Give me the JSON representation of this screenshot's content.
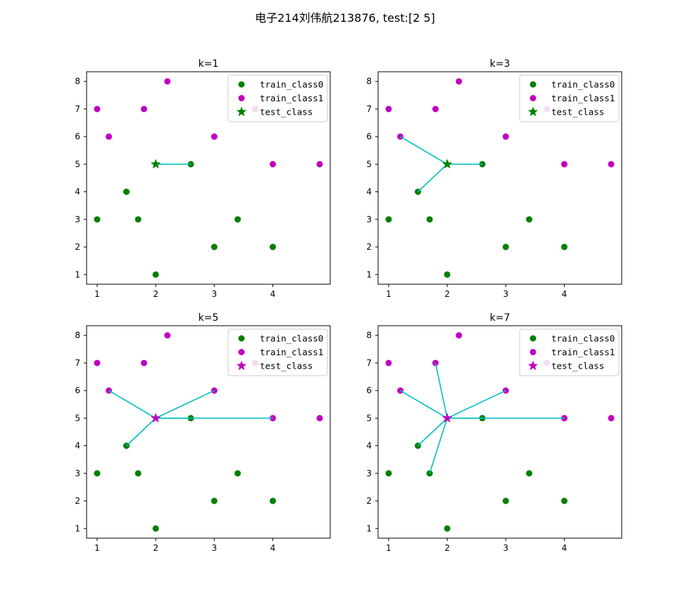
{
  "figure": {
    "suptitle": "电子214刘伟航213876, test:[2 5]"
  },
  "colors": {
    "class0": "#008000",
    "class1": "#bf00bf",
    "neighbor_line": "#00bfbf"
  },
  "chart_data": [
    {
      "type": "scatter",
      "title": "k=1",
      "k": 1,
      "xlim": [
        0.82,
        4.98
      ],
      "ylim": [
        0.65,
        8.35
      ],
      "xticks": [
        "1",
        "2",
        "3",
        "4"
      ],
      "yticks": [
        "1",
        "2",
        "3",
        "4",
        "5",
        "6",
        "7",
        "8"
      ],
      "legend": {
        "placement": "top-right",
        "entries": [
          "train_class0",
          "train_class1",
          "test_class"
        ]
      },
      "train_class0": [
        [
          1.5,
          4
        ],
        [
          1,
          3
        ],
        [
          1.7,
          3
        ],
        [
          3.4,
          3
        ],
        [
          3,
          2
        ],
        [
          4,
          2
        ],
        [
          2,
          1
        ],
        [
          2.6,
          5
        ]
      ],
      "train_class1": [
        [
          2.2,
          8
        ],
        [
          1,
          7
        ],
        [
          1.8,
          7
        ],
        [
          3.7,
          7
        ],
        [
          1.2,
          6
        ],
        [
          3,
          6
        ],
        [
          4,
          5
        ],
        [
          4.8,
          5
        ]
      ],
      "test_point": [
        2,
        5
      ],
      "test_class": "class0",
      "neighbors": [
        [
          2.6,
          5
        ]
      ]
    },
    {
      "type": "scatter",
      "title": "k=3",
      "k": 3,
      "xlim": [
        0.82,
        4.98
      ],
      "ylim": [
        0.65,
        8.35
      ],
      "xticks": [
        "1",
        "2",
        "3",
        "4"
      ],
      "yticks": [
        "1",
        "2",
        "3",
        "4",
        "5",
        "6",
        "7",
        "8"
      ],
      "legend": {
        "placement": "top-right",
        "entries": [
          "train_class0",
          "train_class1",
          "test_class"
        ]
      },
      "train_class0": [
        [
          1.5,
          4
        ],
        [
          1,
          3
        ],
        [
          1.7,
          3
        ],
        [
          3.4,
          3
        ],
        [
          3,
          2
        ],
        [
          4,
          2
        ],
        [
          2,
          1
        ],
        [
          2.6,
          5
        ]
      ],
      "train_class1": [
        [
          2.2,
          8
        ],
        [
          1,
          7
        ],
        [
          1.8,
          7
        ],
        [
          3.7,
          7
        ],
        [
          1.2,
          6
        ],
        [
          3,
          6
        ],
        [
          4,
          5
        ],
        [
          4.8,
          5
        ]
      ],
      "test_point": [
        2,
        5
      ],
      "test_class": "class0",
      "neighbors": [
        [
          2.6,
          5
        ],
        [
          1.2,
          6
        ],
        [
          1.5,
          4
        ]
      ]
    },
    {
      "type": "scatter",
      "title": "k=5",
      "k": 5,
      "xlim": [
        0.82,
        4.98
      ],
      "ylim": [
        0.65,
        8.35
      ],
      "xticks": [
        "1",
        "2",
        "3",
        "4"
      ],
      "yticks": [
        "1",
        "2",
        "3",
        "4",
        "5",
        "6",
        "7",
        "8"
      ],
      "legend": {
        "placement": "top-right",
        "entries": [
          "train_class0",
          "train_class1",
          "test_class"
        ]
      },
      "train_class0": [
        [
          1.5,
          4
        ],
        [
          1,
          3
        ],
        [
          1.7,
          3
        ],
        [
          3.4,
          3
        ],
        [
          3,
          2
        ],
        [
          4,
          2
        ],
        [
          2,
          1
        ],
        [
          2.6,
          5
        ]
      ],
      "train_class1": [
        [
          2.2,
          8
        ],
        [
          1,
          7
        ],
        [
          1.8,
          7
        ],
        [
          3.7,
          7
        ],
        [
          1.2,
          6
        ],
        [
          3,
          6
        ],
        [
          4,
          5
        ],
        [
          4.8,
          5
        ]
      ],
      "test_point": [
        2,
        5
      ],
      "test_class": "class1",
      "neighbors": [
        [
          2.6,
          5
        ],
        [
          1.2,
          6
        ],
        [
          1.5,
          4
        ],
        [
          3,
          6
        ],
        [
          4,
          5
        ]
      ]
    },
    {
      "type": "scatter",
      "title": "k=7",
      "k": 7,
      "xlim": [
        0.82,
        4.98
      ],
      "ylim": [
        0.65,
        8.35
      ],
      "xticks": [
        "1",
        "2",
        "3",
        "4"
      ],
      "yticks": [
        "1",
        "2",
        "3",
        "4",
        "5",
        "6",
        "7",
        "8"
      ],
      "legend": {
        "placement": "top-right",
        "entries": [
          "train_class0",
          "train_class1",
          "test_class"
        ]
      },
      "train_class0": [
        [
          1.5,
          4
        ],
        [
          1,
          3
        ],
        [
          1.7,
          3
        ],
        [
          3.4,
          3
        ],
        [
          3,
          2
        ],
        [
          4,
          2
        ],
        [
          2,
          1
        ],
        [
          2.6,
          5
        ]
      ],
      "train_class1": [
        [
          2.2,
          8
        ],
        [
          1,
          7
        ],
        [
          1.8,
          7
        ],
        [
          3.7,
          7
        ],
        [
          1.2,
          6
        ],
        [
          3,
          6
        ],
        [
          4,
          5
        ],
        [
          4.8,
          5
        ]
      ],
      "test_point": [
        2,
        5
      ],
      "test_class": "class1",
      "neighbors": [
        [
          2.6,
          5
        ],
        [
          1.2,
          6
        ],
        [
          1.5,
          4
        ],
        [
          3,
          6
        ],
        [
          4,
          5
        ],
        [
          1.8,
          7
        ],
        [
          1.7,
          3
        ]
      ]
    }
  ]
}
